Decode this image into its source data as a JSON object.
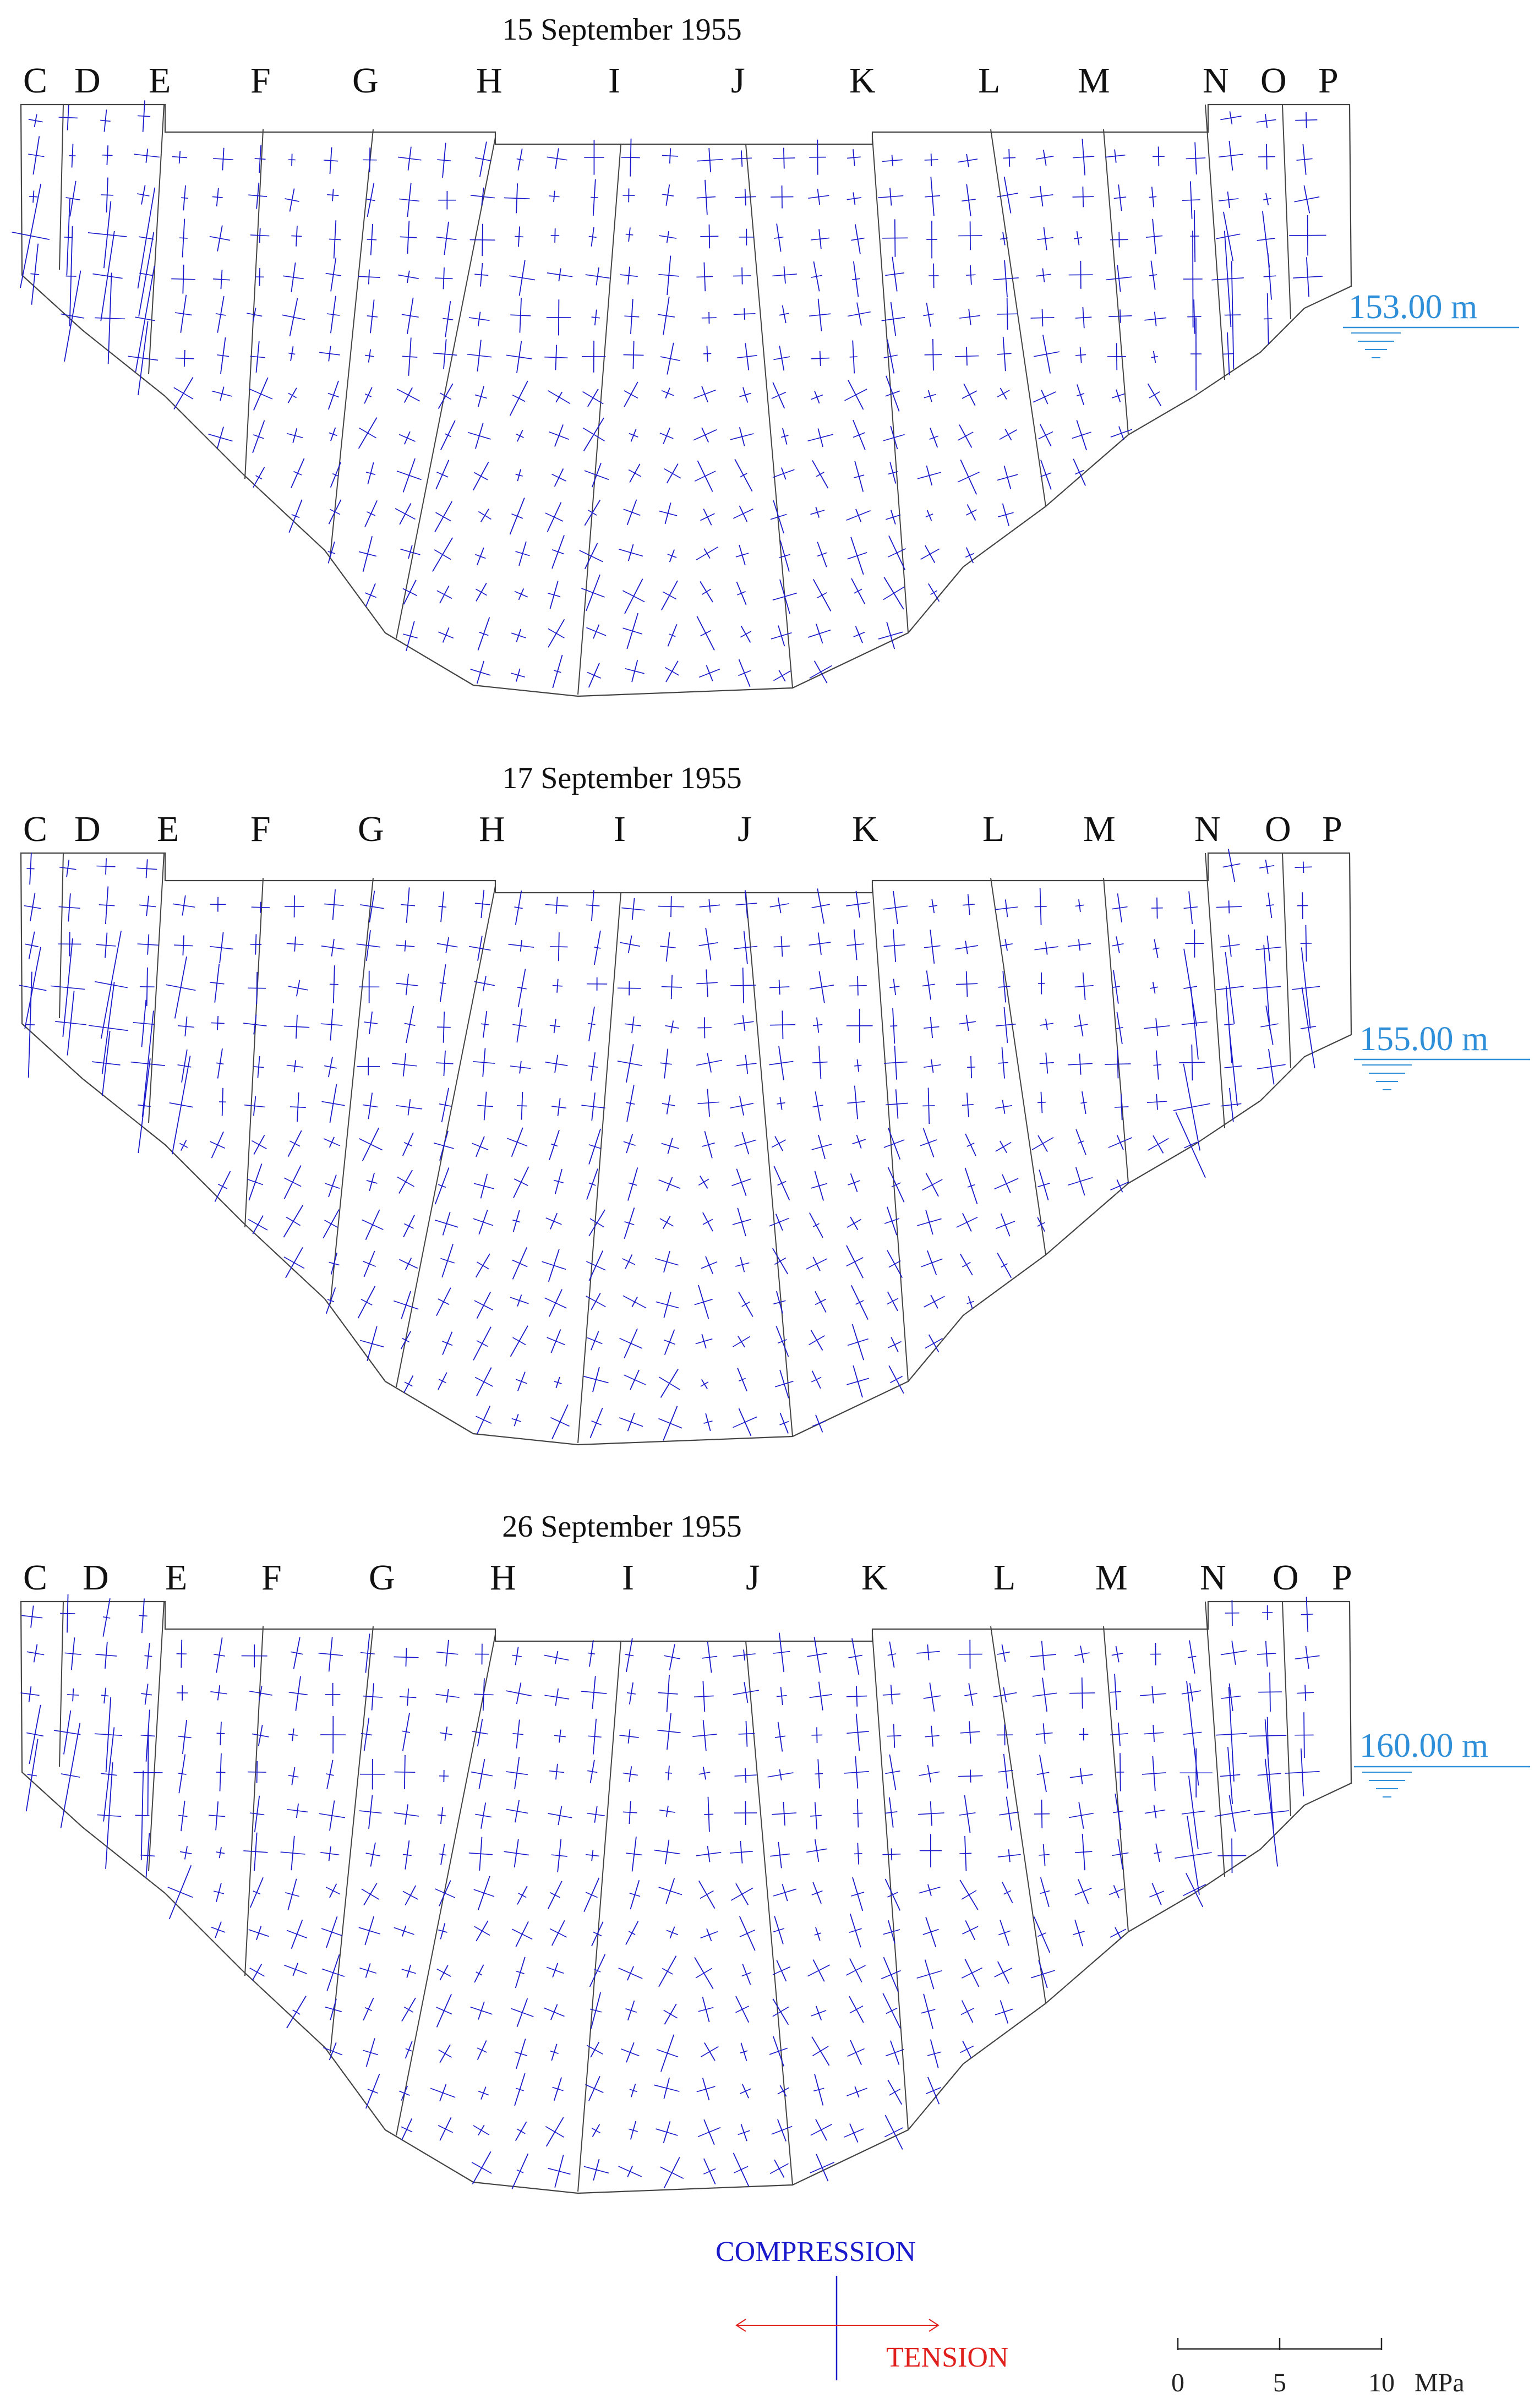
{
  "panels": [
    {
      "date": "15 September 1955",
      "water_level": "153.00 m",
      "columns": [
        "C",
        "D",
        "E",
        "F",
        "G",
        "H",
        "I",
        "J",
        "K",
        "L",
        "M",
        "N",
        "O",
        "P"
      ]
    },
    {
      "date": "17 September 1955",
      "water_level": "155.00 m",
      "columns": [
        "C",
        "D",
        "E",
        "F",
        "G",
        "H",
        "I",
        "J",
        "K",
        "L",
        "M",
        "N",
        "O",
        "P"
      ]
    },
    {
      "date": "26 September 1955",
      "water_level": "160.00 m",
      "columns": [
        "C",
        "D",
        "E",
        "F",
        "G",
        "H",
        "I",
        "J",
        "K",
        "L",
        "M",
        "N",
        "O",
        "P"
      ]
    }
  ],
  "legend": {
    "compression_label": "COMPRESSION",
    "tension_label": "TENSION",
    "compression_color": "#1a1acc",
    "tension_color": "#e0201c"
  },
  "scale_bar": {
    "ticks": [
      "0",
      "5",
      "10"
    ],
    "unit": "MPa"
  },
  "colors": {
    "water_level": "#2f8fd8",
    "outline": "#444444"
  }
}
